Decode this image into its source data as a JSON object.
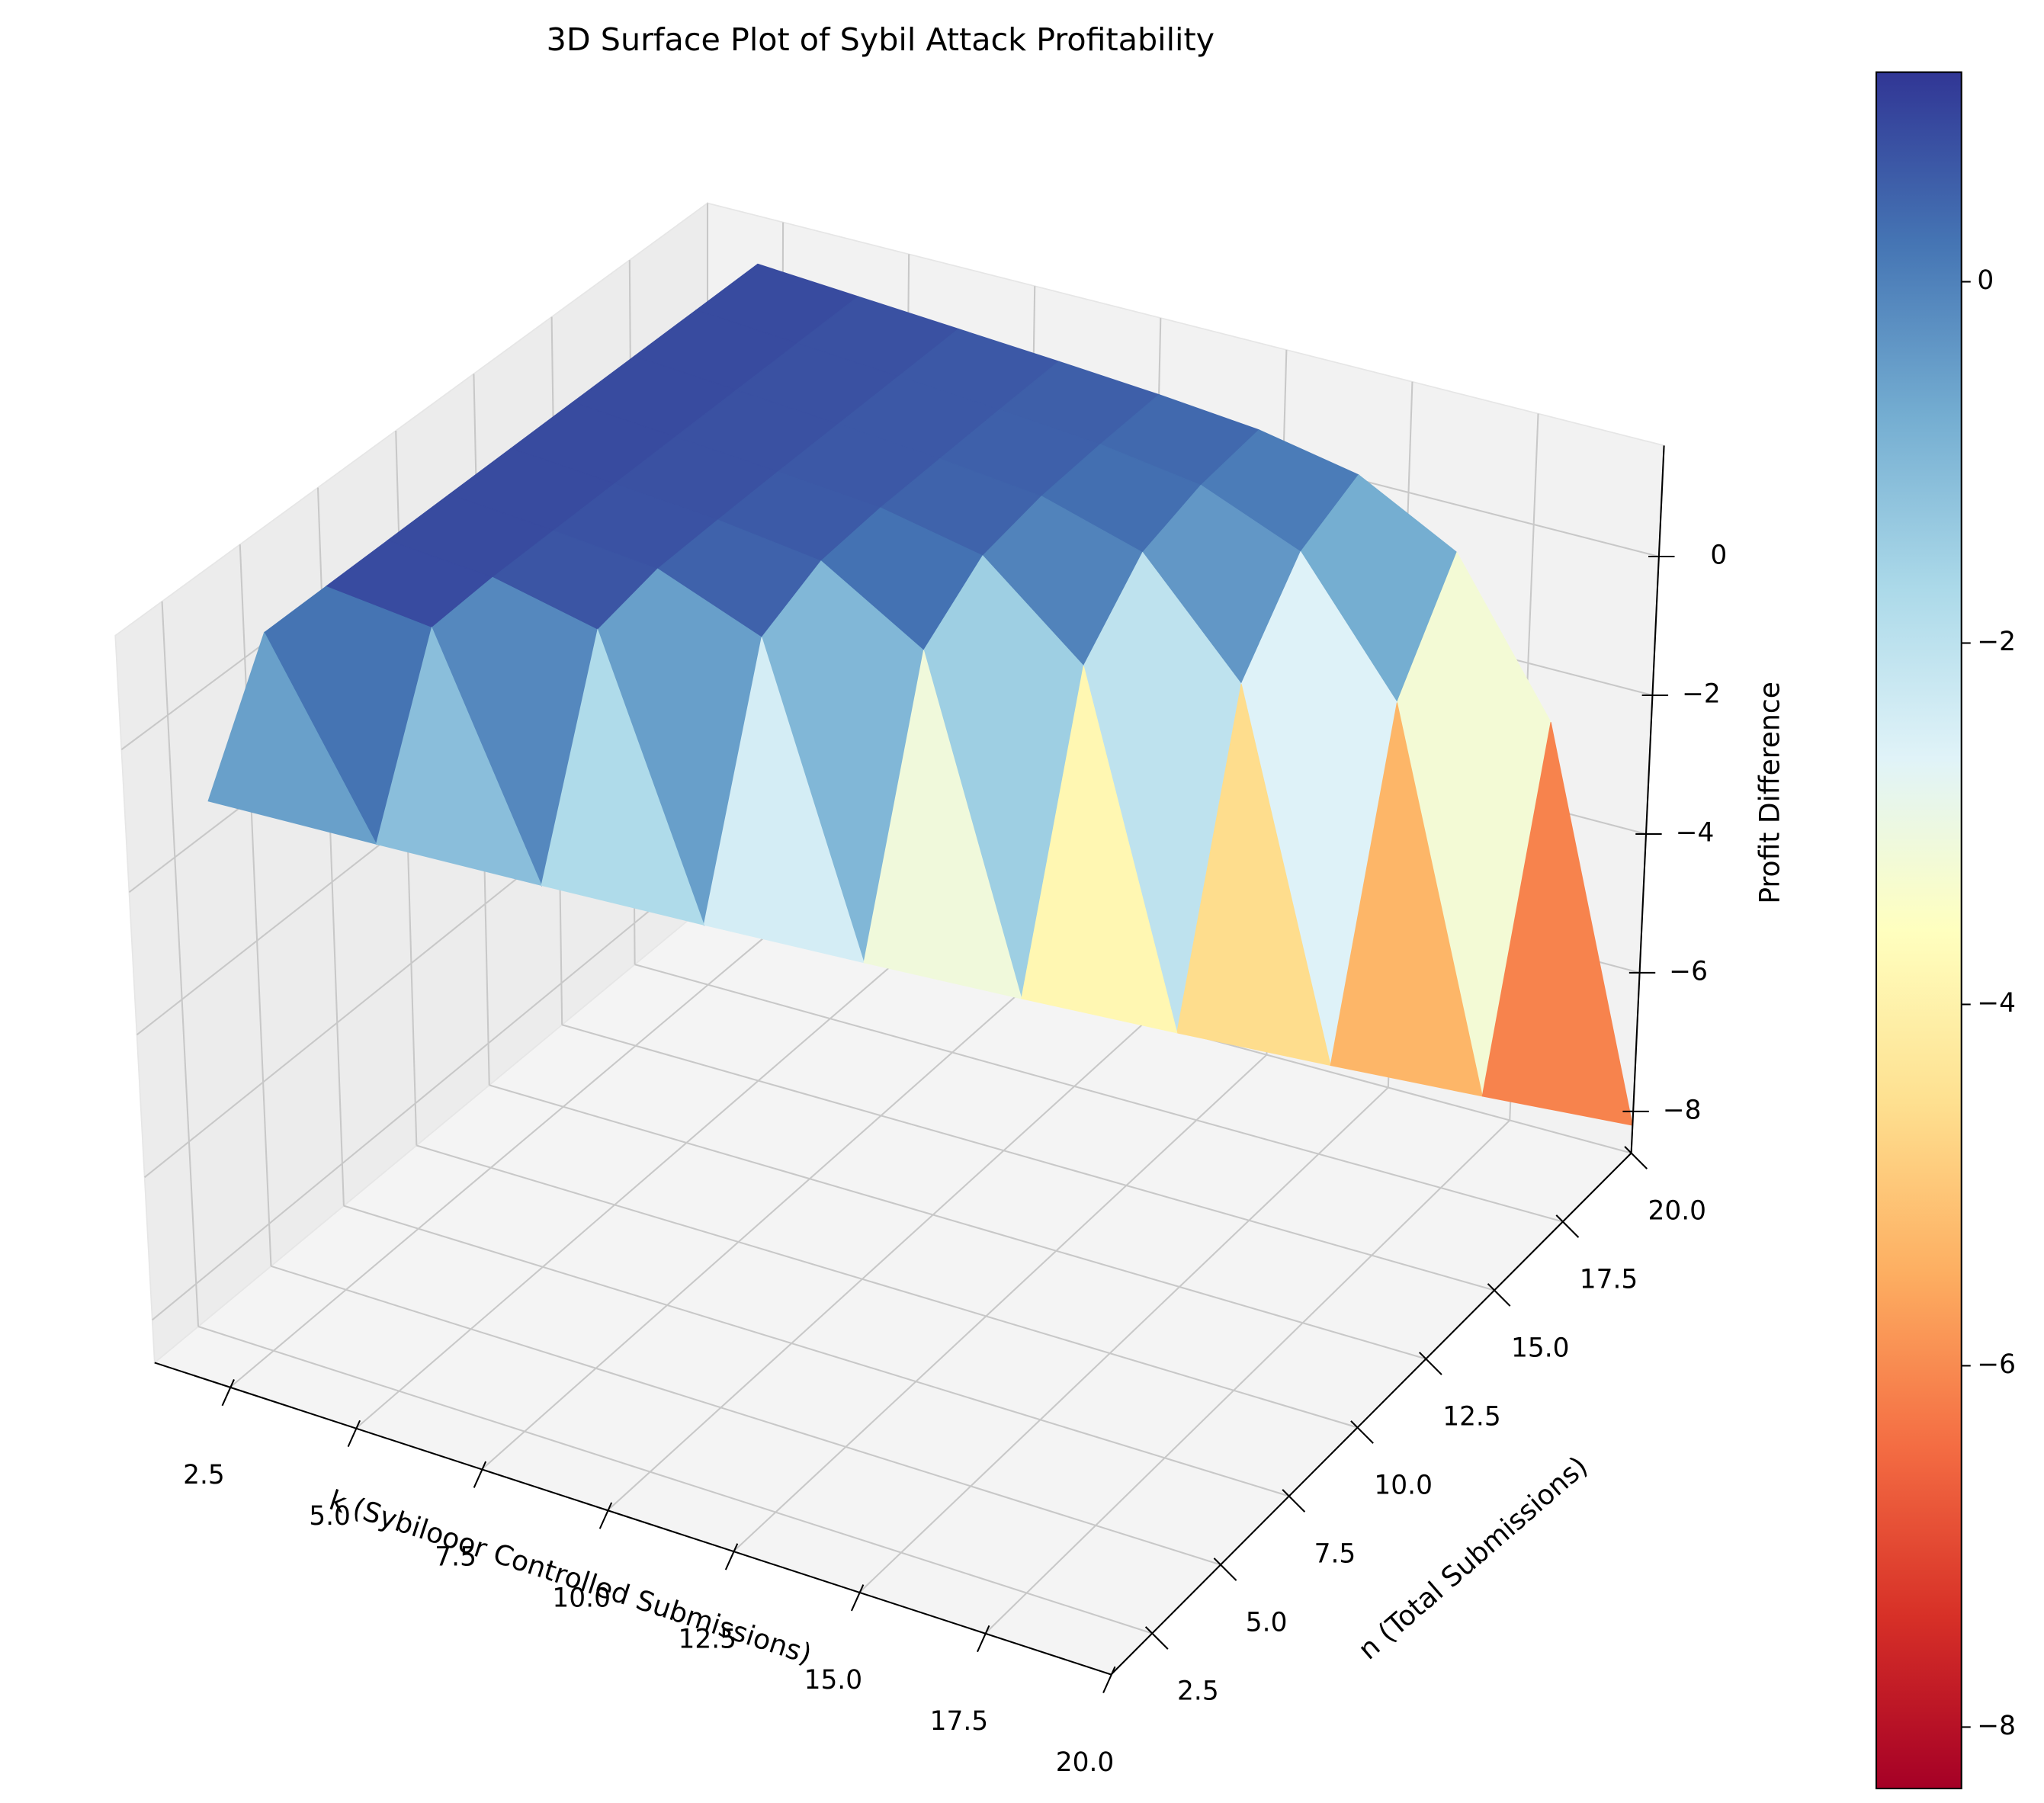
{
  "chart_data": {
    "type": "surface",
    "title": "3D Surface Plot of Sybil Attack Profitability",
    "xlabel": "k (Sybilooor Controlled Submissions)",
    "ylabel": "n (Total Submissions)",
    "zlabel": "Profit Difference",
    "x": [
      2,
      4,
      6,
      8,
      10,
      12,
      14,
      16,
      18,
      20
    ],
    "y": [
      2,
      4,
      6,
      8,
      10,
      12,
      14,
      16,
      18,
      20
    ],
    "z": [
      [
        -0.82,
        null,
        null,
        null,
        null,
        null,
        null,
        null,
        null,
        null
      ],
      [
        0.9,
        -1.64,
        null,
        null,
        null,
        null,
        null,
        null,
        null,
        null
      ],
      [
        0.9,
        0.75,
        -2.46,
        null,
        null,
        null,
        null,
        null,
        null,
        null
      ],
      [
        0.9,
        0.8,
        0.48,
        -3.28,
        null,
        null,
        null,
        null,
        null,
        null
      ],
      [
        0.9,
        0.8,
        0.67,
        0.11,
        -4.1,
        null,
        null,
        null,
        null,
        null
      ],
      [
        0.9,
        0.8,
        0.69,
        0.51,
        -0.36,
        -4.92,
        null,
        null,
        null,
        null
      ],
      [
        0.9,
        0.8,
        0.7,
        0.58,
        0.29,
        -0.89,
        -5.74,
        null,
        null,
        null
      ],
      [
        0.9,
        0.8,
        0.7,
        0.59,
        0.44,
        0.02,
        -1.48,
        -6.56,
        null,
        null
      ],
      [
        0.9,
        0.8,
        0.7,
        0.6,
        0.48,
        0.27,
        -0.31,
        -2.1,
        -7.38,
        null
      ],
      [
        0.9,
        0.8,
        0.7,
        0.6,
        0.49,
        0.35,
        0.07,
        -0.68,
        -2.76,
        -8.2
      ]
    ],
    "xlim": [
      1,
      20
    ],
    "ylim": [
      1,
      20
    ],
    "zlim": [
      -8.6,
      1.6
    ],
    "xticks": [
      2.5,
      {
        "value": 5,
        "label": "5.0"
      },
      7.5,
      {
        "value": 10,
        "label": "10.0"
      },
      12.5,
      {
        "value": 15,
        "label": "15.0"
      },
      17.5,
      {
        "value": 20,
        "label": "20.0"
      }
    ],
    "yticks": [
      2.5,
      {
        "value": 5,
        "label": "5.0"
      },
      7.5,
      {
        "value": 10,
        "label": "10.0"
      },
      12.5,
      {
        "value": 15,
        "label": "15.0"
      },
      17.5,
      {
        "value": 20,
        "label": "20.0"
      }
    ],
    "zticks": [
      {
        "value": -8,
        "label": "−8"
      },
      {
        "value": -6,
        "label": "−6"
      },
      {
        "value": -4,
        "label": "−4"
      },
      {
        "value": -2,
        "label": "−2"
      },
      {
        "value": 0,
        "label": "0"
      }
    ],
    "clim": [
      -8.34,
      1.16
    ],
    "colorbar_ticks": [
      {
        "value": -8,
        "label": "−8"
      },
      {
        "value": -6,
        "label": "−6"
      },
      {
        "value": -4,
        "label": "−4"
      },
      {
        "value": -2,
        "label": "−2"
      },
      {
        "value": 0,
        "label": "0"
      }
    ],
    "colormap": [
      "#a50026",
      "#d73027",
      "#f46d43",
      "#fdae61",
      "#fee090",
      "#ffffbf",
      "#e0f3f8",
      "#abd9e9",
      "#74add1",
      "#4575b4",
      "#313695"
    ],
    "grid": true
  }
}
